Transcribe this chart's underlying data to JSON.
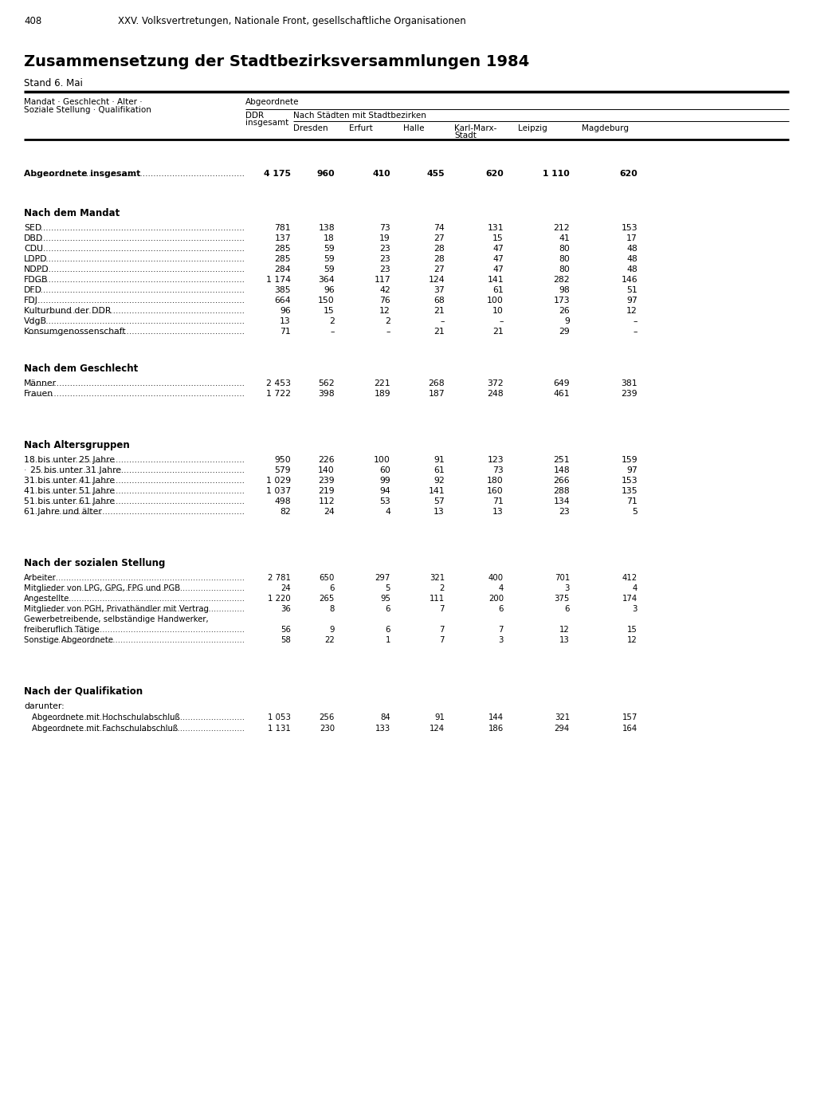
{
  "page_number": "408",
  "page_header": "XXV. Volksvertretungen, Nationale Front, gesellschaftliche Organisationen",
  "title": "Zusammensetzung der Stadtbezirksversammlungen 1984",
  "subtitle": "Stand 6. Mai",
  "col_header_left1": "Mandat · Geschlecht · Alter ·",
  "col_header_left2": "Soziale Stellung · Qualifikation",
  "col_header_abgeordnete": "Abgeordnete",
  "col_header_ddr1": "DDR",
  "col_header_ddr2": "insgesamt",
  "col_header_cities_label": "Nach Städten mit Stadtbezirken",
  "col_headers": [
    "Dresden",
    "Erfurt",
    "Halle",
    "Karl-Marx-",
    "Leipzig",
    "Magdeburg"
  ],
  "col_headers2": [
    "",
    "",
    "",
    "Stadt",
    "",
    ""
  ],
  "total_label": "Abgeordnete insgesamt",
  "total_values": [
    "4 175",
    "960",
    "410",
    "455",
    "620",
    "1 110",
    "620"
  ],
  "sections": [
    {
      "header": "Nach dem Mandat",
      "rows": [
        [
          "SED",
          "781",
          "138",
          "73",
          "74",
          "131",
          "212",
          "153"
        ],
        [
          "DBD",
          "137",
          "18",
          "19",
          "27",
          "15",
          "41",
          "17"
        ],
        [
          "CDU",
          "285",
          "59",
          "23",
          "28",
          "47",
          "80",
          "48"
        ],
        [
          "LDPD",
          "285",
          "59",
          "23",
          "28",
          "47",
          "80",
          "48"
        ],
        [
          "NDPD",
          "284",
          "59",
          "23",
          "27",
          "47",
          "80",
          "48"
        ],
        [
          "FDGB",
          "1 174",
          "364",
          "117",
          "124",
          "141",
          "282",
          "146"
        ],
        [
          "DFD",
          "385",
          "96",
          "42",
          "37",
          "61",
          "98",
          "51"
        ],
        [
          "FDJ",
          "664",
          "150",
          "76",
          "68",
          "100",
          "173",
          "97"
        ],
        [
          "Kulturbund der DDR",
          "96",
          "15",
          "12",
          "21",
          "10",
          "26",
          "12"
        ],
        [
          "VdgB",
          "13",
          "2",
          "2",
          "–",
          "–",
          "9",
          "–"
        ],
        [
          "Konsumgenossenschaft",
          "71",
          "–",
          "–",
          "21",
          "21",
          "29",
          "–"
        ]
      ]
    },
    {
      "header": "Nach dem Geschlecht",
      "rows": [
        [
          "Männer",
          "2 453",
          "562",
          "221",
          "268",
          "372",
          "649",
          "381"
        ],
        [
          "Frauen",
          "1 722",
          "398",
          "189",
          "187",
          "248",
          "461",
          "239"
        ]
      ]
    },
    {
      "header": "Nach Altersgruppen",
      "header_prefix": "​",
      "rows": [
        [
          "18 bis unter 25 Jahre",
          "950",
          "226",
          "100",
          "91",
          "123",
          "251",
          "159"
        ],
        [
          "· 25 bis unter 31 Jahre",
          "579",
          "140",
          "60",
          "61",
          "73",
          "148",
          "97"
        ],
        [
          "31 bis unter 41 Jahre",
          "1 029",
          "239",
          "99",
          "92",
          "180",
          "266",
          "153"
        ],
        [
          "41 bis unter 51 Jahre",
          "1 037",
          "219",
          "94",
          "141",
          "160",
          "288",
          "135"
        ],
        [
          "51 bis unter 61 Jahre",
          "498",
          "112",
          "53",
          "57",
          "71",
          "134",
          "71"
        ],
        [
          "61 Jahre und älter",
          "82",
          "24",
          "4",
          "13",
          "13",
          "23",
          "5"
        ]
      ]
    },
    {
      "header": "Nach der sozialen Stellung",
      "rows": [
        [
          "Arbeiter",
          "2 781",
          "650",
          "297",
          "321",
          "400",
          "701",
          "412"
        ],
        [
          "Mitglieder von LPG, GPG, FPG und PGB",
          "24",
          "6",
          "5",
          "2",
          "4",
          "3",
          "4"
        ],
        [
          "Angestellte",
          "1 220",
          "265",
          "95",
          "111",
          "200",
          "375",
          "174"
        ],
        [
          "Mitglieder von PGH, Privathändler mit Vertrag",
          "36",
          "8",
          "6",
          "7",
          "6",
          "6",
          "3"
        ],
        [
          "Gewerbetreibende, selbständige Handwerker,",
          "",
          "",
          "",
          "",
          "",
          "",
          ""
        ],
        [
          "freiberuflich Tätige",
          "56",
          "9",
          "6",
          "7",
          "7",
          "12",
          "15"
        ],
        [
          "Sonstige Abgeordnete",
          "58",
          "22",
          "1",
          "7",
          "3",
          "13",
          "12"
        ]
      ]
    },
    {
      "header": "Nach der Qualifikation",
      "subheader": "darunter:",
      "rows": [
        [
          "Abgeordnete mit Hochschulabschluß",
          "1 053",
          "256",
          "84",
          "91",
          "144",
          "321",
          "157"
        ],
        [
          "Abgeordnete mit Fachschulabschluß",
          "1 131",
          "230",
          "133",
          "124",
          "186",
          "294",
          "164"
        ]
      ]
    }
  ]
}
